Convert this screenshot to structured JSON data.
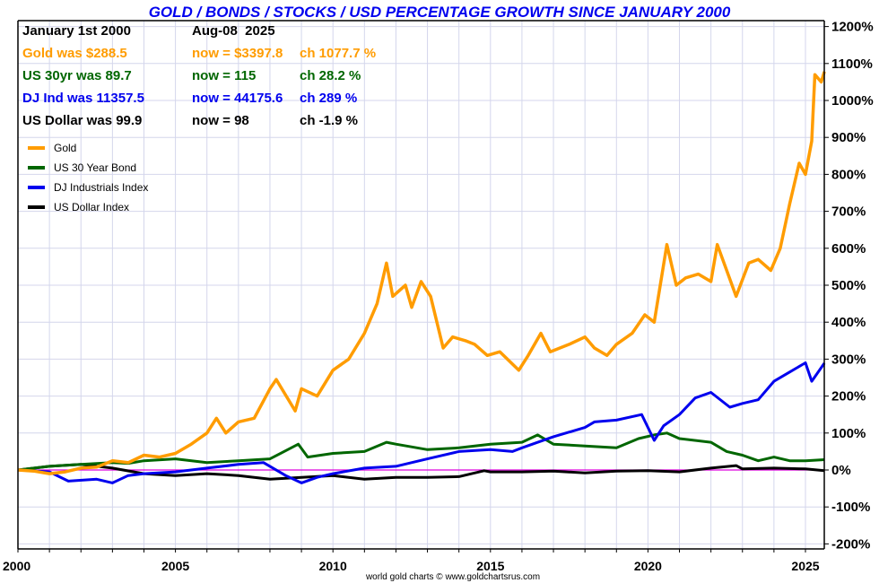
{
  "footer_text": "world gold charts © www.goldchartsrus.com",
  "chart_data": {
    "type": "line",
    "title": "GOLD / BONDS / STOCKS / USD PERCENTAGE GROWTH SINCE JANUARY 2000",
    "xlabel": "",
    "ylabel": "",
    "xlim": [
      2000,
      2025.65
    ],
    "ylim": [
      -200,
      1200
    ],
    "grid": true,
    "legend_position": "top-left",
    "x_ticks": [
      "2000",
      "2005",
      "2010",
      "2015",
      "2020",
      "2025"
    ],
    "y_ticks": [
      "1200%",
      "1100%",
      "1000%",
      "900%",
      "800%",
      "700%",
      "600%",
      "500%",
      "400%",
      "300%",
      "200%",
      "100%",
      "0%",
      "-100%",
      "-200%"
    ],
    "baseline_color": "#dd00dd",
    "info_panel": {
      "start_label": "January 1st 2000",
      "end_label": "Aug-08  2025",
      "rows": [
        {
          "was": "Gold was $288.5",
          "now": "now = $3397.8",
          "ch": "ch 1077.7 %",
          "color": "#ff9c00"
        },
        {
          "was": "US 30yr was 89.7",
          "now": "now = 115",
          "ch": "ch 28.2 %",
          "color": "#006600"
        },
        {
          "was": "DJ Ind was 11357.5",
          "now": "now = 44175.6",
          "ch": "ch 289 %",
          "color": "#0000ee"
        },
        {
          "was": "US Dollar was 99.9",
          "now": "now = 98",
          "ch": "ch -1.9 %",
          "color": "#000000"
        }
      ]
    },
    "series": [
      {
        "name": "Gold",
        "color": "#ff9c00",
        "x": [
          2000,
          2000.5,
          2001,
          2001.5,
          2002,
          2002.5,
          2003,
          2003.5,
          2004,
          2004.5,
          2005,
          2005.5,
          2006,
          2006.3,
          2006.6,
          2007,
          2007.5,
          2008,
          2008.2,
          2008.8,
          2009,
          2009.5,
          2010,
          2010.5,
          2011,
          2011.4,
          2011.7,
          2011.9,
          2012.3,
          2012.5,
          2012.8,
          2013.1,
          2013.5,
          2013.8,
          2014.2,
          2014.5,
          2014.9,
          2015.3,
          2015.9,
          2016.2,
          2016.6,
          2016.9,
          2017.5,
          2018,
          2018.3,
          2018.7,
          2019,
          2019.5,
          2019.9,
          2020.2,
          2020.6,
          2020.9,
          2021.2,
          2021.6,
          2022,
          2022.2,
          2022.8,
          2023.2,
          2023.5,
          2023.9,
          2024.2,
          2024.5,
          2024.8,
          2025,
          2025.2,
          2025.3,
          2025.5,
          2025.6
        ],
        "y": [
          0,
          -3,
          -10,
          -5,
          5,
          8,
          25,
          20,
          40,
          35,
          45,
          70,
          100,
          140,
          100,
          130,
          140,
          220,
          245,
          160,
          220,
          200,
          270,
          300,
          370,
          450,
          560,
          470,
          500,
          440,
          510,
          470,
          330,
          360,
          350,
          340,
          310,
          320,
          270,
          310,
          370,
          320,
          340,
          360,
          330,
          310,
          340,
          370,
          420,
          400,
          610,
          500,
          520,
          530,
          510,
          610,
          470,
          560,
          570,
          540,
          600,
          720,
          830,
          800,
          890,
          1070,
          1050,
          1078
        ]
      },
      {
        "name": "US 30 Year Bond",
        "color": "#006600",
        "x": [
          2000,
          2001,
          2002,
          2003,
          2003.5,
          2004,
          2005,
          2006,
          2007,
          2008,
          2008.9,
          2009.2,
          2010,
          2011,
          2011.7,
          2012,
          2013,
          2014,
          2015,
          2016,
          2016.5,
          2017,
          2018,
          2019,
          2019.7,
          2020.2,
          2020.6,
          2021,
          2022,
          2022.5,
          2023,
          2023.5,
          2024,
          2024.5,
          2025,
          2025.6
        ],
        "y": [
          0,
          10,
          15,
          20,
          18,
          25,
          30,
          20,
          25,
          30,
          70,
          35,
          45,
          50,
          75,
          70,
          55,
          60,
          70,
          75,
          95,
          70,
          65,
          60,
          85,
          95,
          100,
          85,
          75,
          50,
          40,
          25,
          35,
          25,
          25,
          28
        ]
      },
      {
        "name": "DJ Industrials Index",
        "color": "#0000ee",
        "x": [
          2000,
          2001,
          2001.6,
          2002.5,
          2003,
          2003.5,
          2004,
          2005,
          2006,
          2007,
          2007.8,
          2008.5,
          2009,
          2009.5,
          2010,
          2011,
          2012,
          2013,
          2014,
          2015,
          2015.7,
          2016,
          2017,
          2018,
          2018.3,
          2019,
          2019.8,
          2020.2,
          2020.5,
          2021,
          2021.5,
          2022,
          2022.6,
          2023,
          2023.5,
          2024,
          2024.5,
          2025,
          2025.2,
          2025.6
        ],
        "y": [
          0,
          -5,
          -30,
          -25,
          -35,
          -15,
          -10,
          -5,
          5,
          15,
          20,
          -15,
          -35,
          -20,
          -10,
          5,
          10,
          30,
          50,
          55,
          50,
          60,
          90,
          115,
          130,
          135,
          150,
          80,
          120,
          150,
          195,
          210,
          170,
          180,
          190,
          240,
          265,
          290,
          240,
          289
        ]
      },
      {
        "name": "US Dollar Index",
        "color": "#000000",
        "x": [
          2000,
          2001,
          2002,
          2003,
          2004,
          2005,
          2006,
          2007,
          2008,
          2009,
          2010,
          2011,
          2012,
          2013,
          2014,
          2014.8,
          2015,
          2016,
          2017,
          2018,
          2019,
          2020,
          2021,
          2022,
          2022.8,
          2023,
          2024,
          2025,
          2025.6
        ],
        "y": [
          0,
          10,
          15,
          5,
          -10,
          -15,
          -10,
          -15,
          -25,
          -20,
          -15,
          -25,
          -20,
          -20,
          -18,
          -2,
          -5,
          -5,
          -3,
          -8,
          -3,
          -2,
          -5,
          5,
          12,
          3,
          5,
          3,
          -2
        ]
      }
    ]
  }
}
